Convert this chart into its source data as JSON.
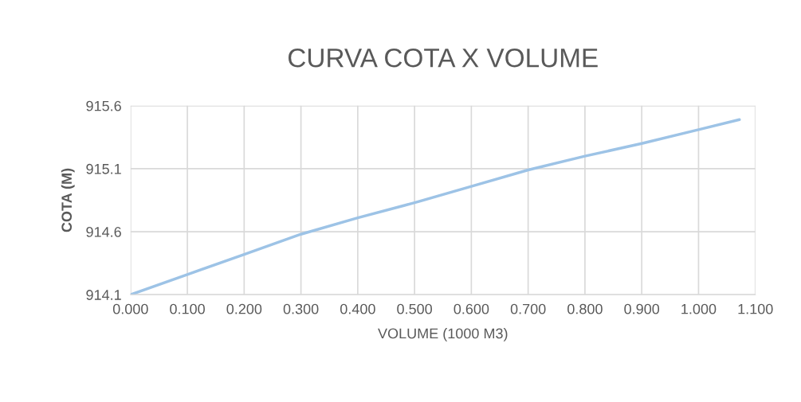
{
  "chart_data": {
    "type": "line",
    "title": "CURVA COTA X VOLUME",
    "xlabel": "VOLUME (1000 M3)",
    "ylabel": "COTA (M)",
    "x": [
      0,
      0.1,
      0.2,
      0.3,
      0.4,
      0.5,
      0.6,
      0.7,
      0.8,
      0.9,
      1.0,
      1.072
    ],
    "series": [
      {
        "color": "#9dc3e6",
        "values": [
          914.1,
          914.26,
          914.42,
          914.58,
          914.71,
          914.83,
          914.96,
          915.09,
          915.2,
          915.3,
          915.41,
          915.49
        ]
      }
    ],
    "xlim": [
      0,
      1.1
    ],
    "xticks": [
      {
        "value": 0,
        "label": "0.000"
      },
      {
        "value": 0.1,
        "label": "0.100"
      },
      {
        "value": 0.2,
        "label": "0.200"
      },
      {
        "value": 0.3,
        "label": "0.300"
      },
      {
        "value": 0.4,
        "label": "0.400"
      },
      {
        "value": 0.5,
        "label": "0.500"
      },
      {
        "value": 0.6,
        "label": "0.600"
      },
      {
        "value": 0.7,
        "label": "0.700"
      },
      {
        "value": 0.8,
        "label": "0.800"
      },
      {
        "value": 0.9,
        "label": "0.900"
      },
      {
        "value": 1.0,
        "label": "1.000"
      },
      {
        "value": 1.1,
        "label": "1.100"
      }
    ],
    "ylim": [
      914.1,
      915.6
    ],
    "yticks": [
      914.1,
      914.6,
      915.1,
      915.6
    ],
    "grid": true,
    "marker": "none",
    "line_style": "solid"
  }
}
